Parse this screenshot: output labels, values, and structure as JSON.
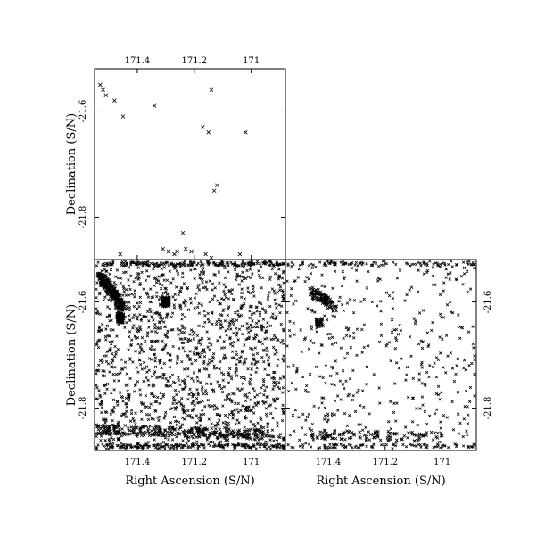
{
  "chart_data": [
    {
      "id": "top-left",
      "type": "scatter",
      "xlabel": "",
      "ylabel": "Declination (S/N)",
      "xlim": [
        171.55,
        170.88
      ],
      "ylim": [
        -21.88,
        -21.52
      ],
      "x_ticks": [
        171.4,
        171.2,
        171.0
      ],
      "x_tick_labels": [
        "171.4",
        "171.2",
        "171"
      ],
      "x_tick_labels_position": "top",
      "y_ticks": [
        -21.8,
        -21.6
      ],
      "y_tick_labels": [
        "-21.8",
        "-21.6"
      ],
      "y_tick_labels_position": "left",
      "marker": "x",
      "points": [
        [
          171.51,
          -21.57
        ],
        [
          171.48,
          -21.58
        ],
        [
          171.45,
          -21.61
        ],
        [
          171.34,
          -21.59
        ],
        [
          171.14,
          -21.56
        ],
        [
          171.17,
          -21.63
        ],
        [
          171.15,
          -21.64
        ],
        [
          171.02,
          -21.64
        ],
        [
          171.12,
          -21.74
        ],
        [
          171.24,
          -21.83
        ],
        [
          171.13,
          -21.75
        ],
        [
          171.46,
          -21.87
        ],
        [
          171.31,
          -21.86
        ],
        [
          171.29,
          -21.865
        ],
        [
          171.27,
          -21.87
        ],
        [
          171.26,
          -21.865
        ],
        [
          171.23,
          -21.86
        ],
        [
          171.21,
          -21.865
        ],
        [
          171.16,
          -21.87
        ],
        [
          171.14,
          -21.88
        ],
        [
          171.04,
          -21.87
        ],
        [
          171.53,
          -21.55
        ],
        [
          171.52,
          -21.56
        ]
      ]
    },
    {
      "id": "bottom-left",
      "type": "scatter",
      "xlabel": "Right Ascension (S/N)",
      "ylabel": "Declination (S/N)",
      "xlim": [
        171.55,
        170.88
      ],
      "ylim": [
        -21.88,
        -21.52
      ],
      "x_ticks": [
        171.4,
        171.2,
        171.0
      ],
      "x_tick_labels": [
        "171.4",
        "171.2",
        "171"
      ],
      "x_tick_labels_position": "bottom",
      "y_ticks": [
        -21.8,
        -21.6
      ],
      "y_tick_labels": [
        "-21.8",
        "-21.6"
      ],
      "y_tick_labels_position": "left",
      "marker": "x",
      "density": "dense",
      "features": [
        {
          "kind": "band",
          "from": [
            171.55,
            -21.84
          ],
          "to": [
            170.95,
            -21.85
          ]
        },
        {
          "kind": "band",
          "from": [
            171.53,
            -21.55
          ],
          "to": [
            171.45,
            -21.61
          ]
        },
        {
          "kind": "clump",
          "at": [
            171.46,
            -21.63
          ]
        },
        {
          "kind": "clump",
          "at": [
            171.3,
            -21.6
          ]
        }
      ]
    },
    {
      "id": "bottom-right",
      "type": "scatter",
      "xlabel": "Right Ascension (S/N)",
      "ylabel": "",
      "xlim": [
        171.55,
        170.88
      ],
      "ylim": [
        -21.88,
        -21.52
      ],
      "x_ticks": [
        171.4,
        171.2,
        171.0
      ],
      "x_tick_labels": [
        "171.4",
        "171.2",
        "171"
      ],
      "x_tick_labels_position": "bottom",
      "y_ticks": [
        -21.8,
        -21.6
      ],
      "y_tick_labels": [
        "-21.8",
        "-21.6"
      ],
      "y_tick_labels_position": "right",
      "marker": "x",
      "density": "sparse",
      "features": [
        {
          "kind": "band",
          "from": [
            171.48,
            -21.85
          ],
          "to": [
            171.0,
            -21.855
          ]
        },
        {
          "kind": "band",
          "from": [
            171.46,
            -21.58
          ],
          "to": [
            171.38,
            -21.61
          ]
        },
        {
          "kind": "clump",
          "at": [
            171.43,
            -21.64
          ]
        }
      ]
    }
  ]
}
